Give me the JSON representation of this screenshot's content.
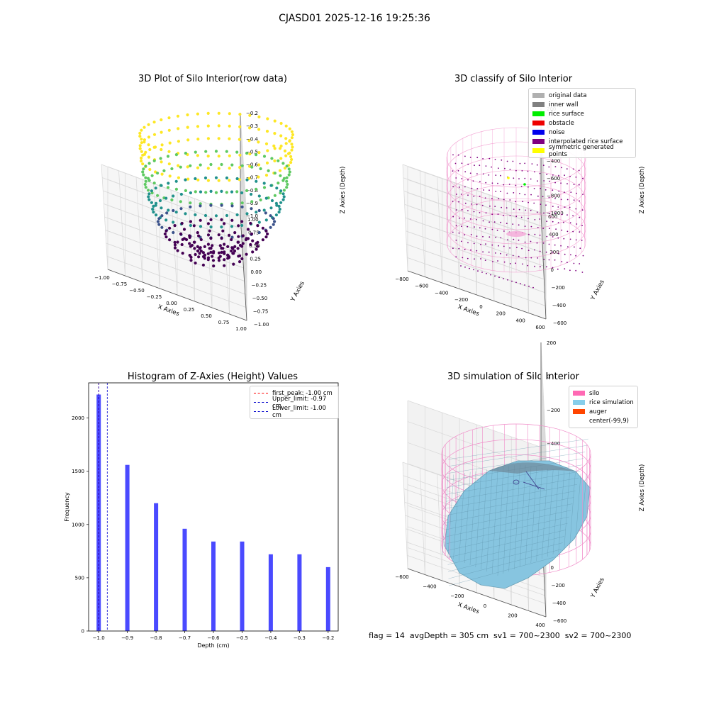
{
  "figure": {
    "suptitle": "CJASD01 2025-12-16 19:25:36",
    "status_line": "flag = 14  avgDepth = 305 cm  sv1 = 700~2300  sv2 = 700~2300"
  },
  "chart_data": [
    {
      "id": "raw",
      "type": "scatter3d",
      "title": "3D Plot of Silo Interior(row data)",
      "xlabel": "X Axies",
      "ylabel": "Y Axies",
      "zlabel": "Z Axies (Depth)",
      "xticks": [
        "−1.00",
        "−0.75",
        "−0.50",
        "−0.25",
        "0.00",
        "0.25",
        "0.50",
        "0.75",
        "1.00"
      ],
      "yticks": [
        "−1.00",
        "−0.75",
        "−0.50",
        "−0.25",
        "0.00",
        "0.25",
        "0.50",
        "0.75",
        "1.00"
      ],
      "zticks": [
        "−0.2",
        "−0.3",
        "−0.4",
        "−0.5",
        "−0.6",
        "−0.7",
        "−0.8",
        "−0.9",
        "−1.0"
      ],
      "xlim": [
        -1,
        1
      ],
      "ylim": [
        -1,
        1
      ],
      "zlim": [
        -1,
        -0.2
      ],
      "colormap": [
        "#440154",
        "#3b528b",
        "#21918c",
        "#5ec962",
        "#fde725"
      ]
    },
    {
      "id": "classify",
      "type": "scatter3d",
      "title": "3D classify of Silo Interior",
      "xlabel": "X Axies",
      "ylabel": "Y Axies",
      "zlabel": "Z Axies (Depth)",
      "xticks": [
        "−800",
        "−600",
        "−400",
        "−200",
        "0",
        "200",
        "400",
        "600"
      ],
      "yticks": [
        "−600",
        "−400",
        "−200",
        "0",
        "200",
        "400",
        "600"
      ],
      "zticks": [
        "200",
        "0",
        "−200",
        "−400",
        "−600",
        "−800",
        "−1000"
      ],
      "legend": [
        {
          "label": "original data",
          "color": "#b0b0b0"
        },
        {
          "label": "inner wall",
          "color": "#808080"
        },
        {
          "label": "rice surface",
          "color": "#00ee00"
        },
        {
          "label": "obstacle",
          "color": "#ee0000"
        },
        {
          "label": "noise",
          "color": "#0000ee"
        },
        {
          "label": "interpolated rice surface",
          "color": "#800080"
        },
        {
          "label": "symmetric generated points",
          "color": "#ffff00"
        }
      ],
      "wall_color": "#f08cc8"
    },
    {
      "id": "hist",
      "type": "bar",
      "title": "Histogram of Z-Axies (Height) Values",
      "xlabel": "Depth (cm)",
      "ylabel": "Frequency",
      "x": [
        -1.0,
        -0.9,
        -0.8,
        -0.7,
        -0.6,
        -0.5,
        -0.4,
        -0.3,
        -0.2
      ],
      "values": [
        2220,
        1560,
        1200,
        960,
        840,
        840,
        720,
        720,
        600
      ],
      "xlim": [
        -1.035,
        -0.165
      ],
      "ylim": [
        0,
        2330
      ],
      "xticks": [
        -1.0,
        -0.9,
        -0.8,
        -0.7,
        -0.6,
        -0.5,
        -0.4,
        -0.3,
        -0.2
      ],
      "xtick_labels": [
        "−1.0",
        "−0.9",
        "−0.8",
        "−0.7",
        "−0.6",
        "−0.5",
        "−0.4",
        "−0.3",
        "−0.2"
      ],
      "yticks": [
        0,
        500,
        1000,
        1500,
        2000
      ],
      "ytick_labels": [
        "0",
        "500",
        "1000",
        "1500",
        "2000"
      ],
      "bar_color": "#4040ff",
      "lines": [
        {
          "label": "first_peak: -1.00 cm",
          "x": -1.0,
          "color": "#ff0000"
        },
        {
          "label": "Upper_limit: -0.97 cm",
          "x": -0.97,
          "color": "#0000cc"
        },
        {
          "label": "Lower_limit: -1.00 cm",
          "x": -1.0,
          "color": "#0000cc"
        }
      ],
      "legend_position": "upper-right"
    },
    {
      "id": "sim",
      "type": "surface3d",
      "title": "3D simulation of Silo Interior",
      "xlabel": "X Axies",
      "ylabel": "Y Axies",
      "zlabel": "Z Axies (Depth)",
      "xticks": [
        "−600",
        "−400",
        "−200",
        "0",
        "200",
        "400"
      ],
      "yticks": [
        "−600",
        "−400",
        "−200",
        "0",
        "200",
        "400",
        "600"
      ],
      "zticks": [
        "200",
        "0",
        "−200",
        "−400",
        "−600",
        "−800"
      ],
      "legend": [
        {
          "label": "silo",
          "color": "#ff69b4"
        },
        {
          "label": "rice simulation",
          "color": "#87ceeb"
        },
        {
          "label": "auger",
          "color": "#ff4500"
        },
        {
          "label": "center(-99,9)",
          "color": ""
        }
      ],
      "surface_color": "#87c5e0",
      "wall_color": "#f08cc8"
    }
  ]
}
